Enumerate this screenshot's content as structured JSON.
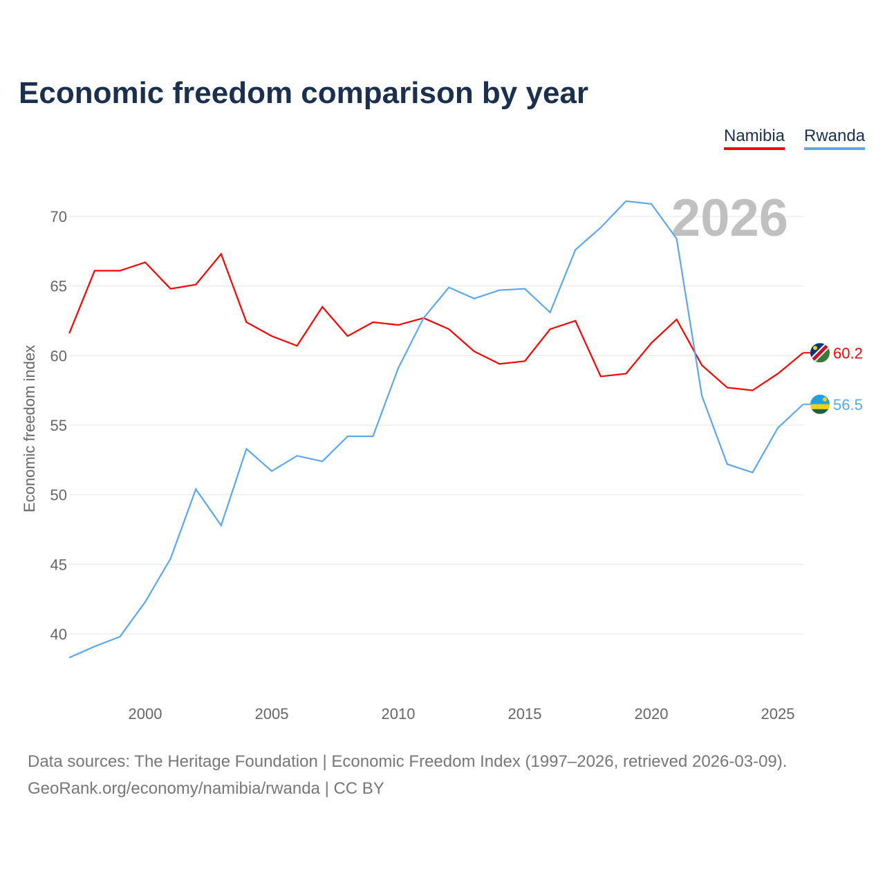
{
  "chart_data": {
    "type": "line",
    "title": "Economic freedom comparison by year",
    "xlabel": "",
    "ylabel": "Economic freedom index",
    "xlim": [
      1997,
      2026
    ],
    "ylim": [
      36,
      73
    ],
    "x_ticks": [
      2000,
      2005,
      2010,
      2015,
      2020,
      2025
    ],
    "y_ticks": [
      40,
      45,
      50,
      55,
      60,
      65,
      70
    ],
    "grid": true,
    "legend_position": "top-right",
    "current_year_label": "2026",
    "x": [
      1997,
      1998,
      1999,
      2000,
      2001,
      2002,
      2003,
      2004,
      2005,
      2006,
      2007,
      2008,
      2009,
      2010,
      2011,
      2012,
      2013,
      2014,
      2015,
      2016,
      2017,
      2018,
      2019,
      2020,
      2021,
      2022,
      2023,
      2024,
      2025,
      2026
    ],
    "series": [
      {
        "name": "Namibia",
        "color": "#ff0000",
        "end_label": "60.2",
        "values": [
          61.6,
          66.1,
          66.1,
          66.7,
          64.8,
          65.1,
          67.3,
          62.4,
          61.4,
          60.7,
          63.5,
          61.4,
          62.4,
          62.2,
          62.7,
          61.9,
          60.3,
          59.4,
          59.6,
          61.9,
          62.5,
          58.5,
          58.7,
          60.9,
          62.6,
          59.3,
          57.7,
          57.5,
          58.7,
          60.2
        ]
      },
      {
        "name": "Rwanda",
        "color": "#5ba7ee",
        "end_label": "56.5",
        "values": [
          38.3,
          39.1,
          39.8,
          42.3,
          45.4,
          50.4,
          47.8,
          53.3,
          51.7,
          52.8,
          52.4,
          54.2,
          54.2,
          59.1,
          62.7,
          64.9,
          64.1,
          64.7,
          64.8,
          63.1,
          67.6,
          69.2,
          71.1,
          70.9,
          68.4,
          57.1,
          52.2,
          51.6,
          54.8,
          56.5
        ]
      }
    ]
  },
  "footer": {
    "line1": "Data sources: The Heritage Foundation | Economic Freedom Index (1997–2026, retrieved 2026-03-09).",
    "line2": "GeoRank.org/economy/namibia/rwanda | CC BY"
  }
}
